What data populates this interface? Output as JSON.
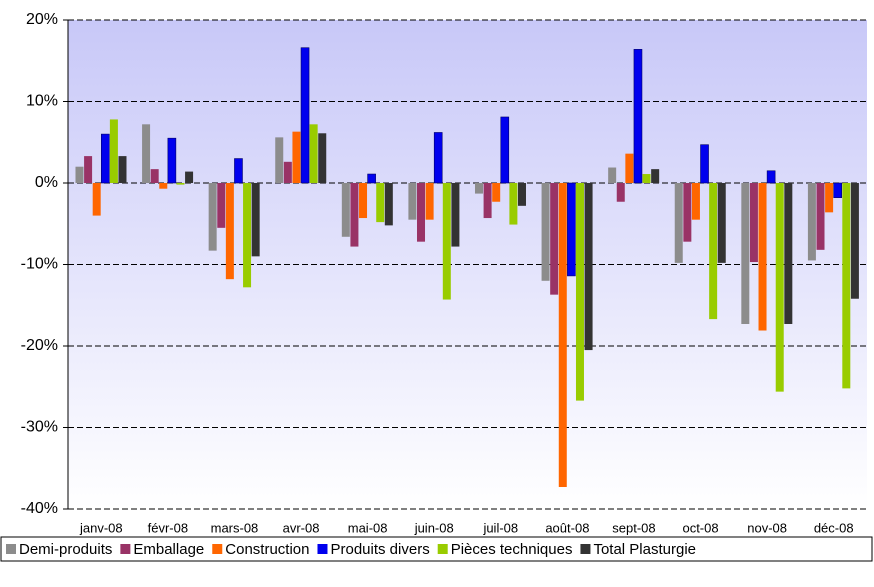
{
  "chart_data": {
    "type": "bar",
    "categories": [
      "janv-08",
      "févr-08",
      "mars-08",
      "avr-08",
      "mai-08",
      "juin-08",
      "juil-08",
      "août-08",
      "sept-08",
      "oct-08",
      "nov-08",
      "déc-08"
    ],
    "series": [
      {
        "name": "Demi-produits",
        "color": "#8c8c8c",
        "values": [
          2,
          7.2,
          -8.3,
          5.6,
          -6.6,
          -4.5,
          -1.3,
          -12,
          1.9,
          -9.8,
          -17.3,
          -9.5
        ]
      },
      {
        "name": "Emballage",
        "color": "#993366",
        "values": [
          3.3,
          1.7,
          -5.5,
          2.6,
          -7.8,
          -7.2,
          -4.3,
          -13.7,
          -2.3,
          -7.2,
          -9.7,
          -8.2
        ]
      },
      {
        "name": "Construction",
        "color": "#ff6600",
        "values": [
          -4,
          -0.7,
          -11.8,
          6.3,
          -4.3,
          -4.5,
          -2.3,
          -37.3,
          3.6,
          -4.5,
          -18.1,
          -3.6
        ]
      },
      {
        "name": "Produits divers",
        "color": "#0000ee",
        "values": [
          6,
          5.5,
          3,
          16.6,
          1.1,
          6.2,
          8.1,
          -11.4,
          16.4,
          4.7,
          1.5,
          -1.8
        ]
      },
      {
        "name": "Pièces techniques",
        "color": "#99cc00",
        "values": [
          7.8,
          -0.2,
          -12.8,
          7.2,
          -4.8,
          -14.3,
          -5.1,
          -26.7,
          1.1,
          -16.7,
          -25.6,
          -25.2
        ]
      },
      {
        "name": "Total Plasturgie",
        "color": "#333333",
        "values": [
          3.3,
          1.4,
          -9,
          6.1,
          -5.2,
          -7.8,
          -2.8,
          -20.5,
          1.7,
          -9.8,
          -17.3,
          -14.2
        ]
      }
    ],
    "ylim": [
      -40,
      20
    ],
    "yticks": [
      {
        "value": -40,
        "label": "-40%"
      },
      {
        "value": -30,
        "label": "-30%"
      },
      {
        "value": -20,
        "label": "-20%"
      },
      {
        "value": -10,
        "label": "-10%"
      },
      {
        "value": 0,
        "label": "0%"
      },
      {
        "value": 10,
        "label": "10%"
      },
      {
        "value": 20,
        "label": "20%"
      }
    ],
    "grid": true,
    "legend": "bottom"
  }
}
